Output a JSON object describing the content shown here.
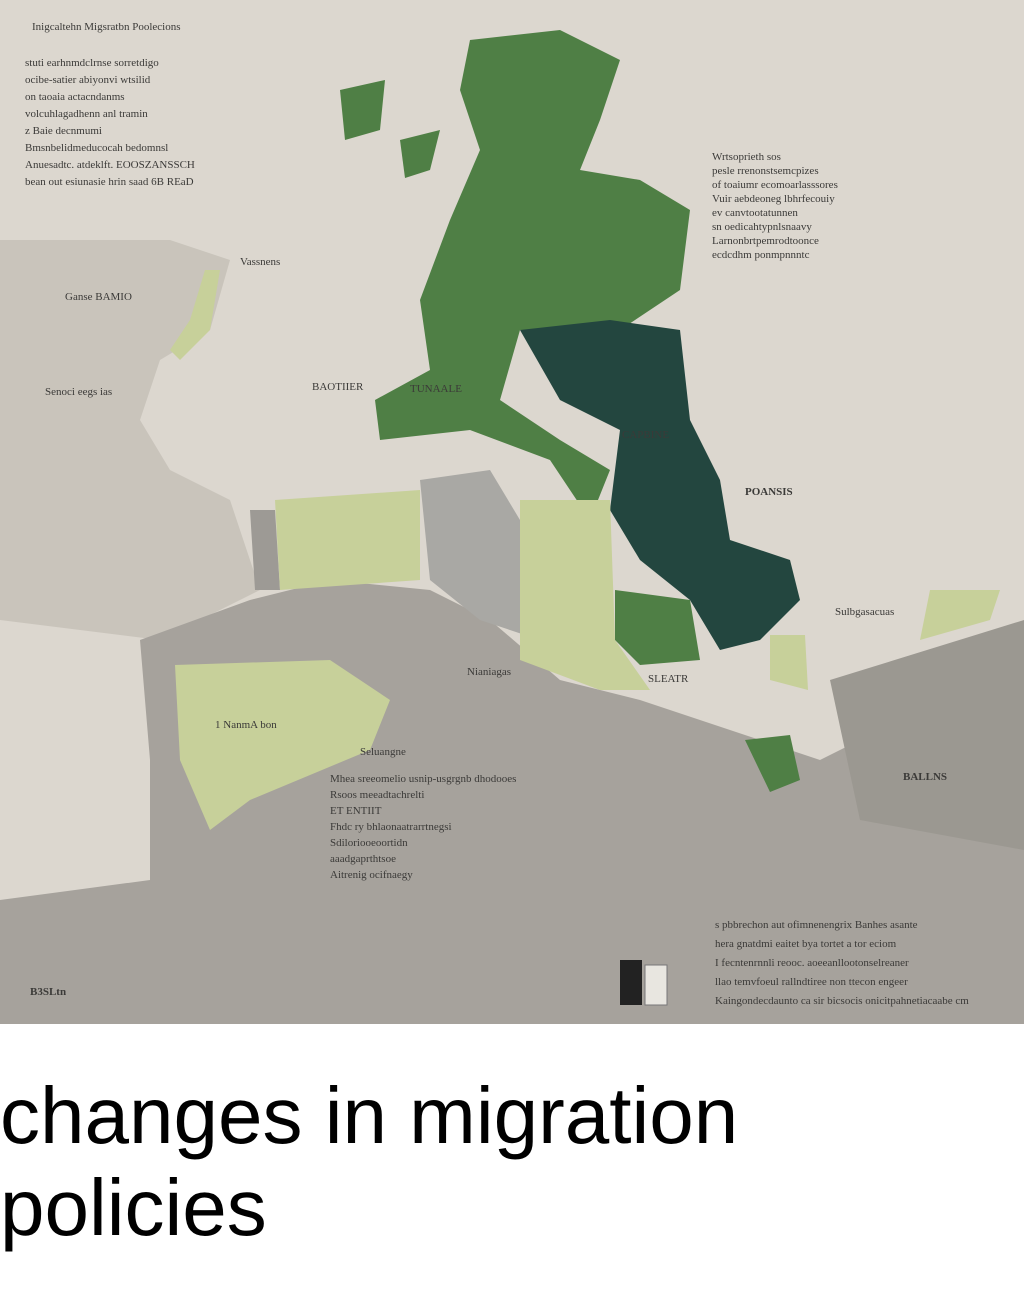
{
  "map": {
    "title": "Inigcaltehn Migsratbn Poolecions",
    "intro_lines": [
      "stuti earhnmdclrnse sorretdigo",
      "ocibe-satier abiyonvi wtsilid",
      "on taoaia actacndanms",
      "volcuhlagadhenn anl tramin",
      "z Baie decnmumi",
      "Bmsnbelidmeducocah bedomnsl",
      "Anuesadtc. atdeklft. EOOSZANSSCH",
      "bean out esiunasie hrin saad 6B REaD"
    ],
    "labels": [
      "Vassnens",
      "BAOTIIER",
      "TUNAALE",
      "CAPBINE",
      "POANSIS",
      "1 NanmA bon",
      "SLEATR",
      "BALLNS",
      "Ganse BAMIO",
      "Senoci eegs ias",
      "Sulbgasacuas",
      "Nianiagas",
      "Seluangne"
    ],
    "right_notes": [
      "Wrtsoprieth sos",
      "pesle rrenonstsemcpizes",
      "of toaiumr ecomoarlasssores",
      "Vuir aebdeoneg lbhrfecouiy",
      "ev canvtootatunnen",
      "sn oedicahtypnlsnaavy",
      "Larnonbrtpemrodtoonce",
      "ecdcdhm ponmpnnntc"
    ],
    "center_notes": [
      "Mhea sreeomelio usnip-usgrgnb dhodooes",
      "Rsoos meeadtachrelti",
      "ET ENTIIT",
      "Fhdc ry bhlaonaatrarrtnegsi",
      "Sdiloriooeoortidn",
      "aaadgaprthtsoe",
      "Aitrenig ocifnaegy"
    ],
    "bottom_notes": [
      "s pbbrechon aut ofimnenengrix Banhes asante",
      "hera gnatdmi eaitet bya tortet a tor eciom",
      "I fecntenrnnli reooc. aoeeanllootonselreaner",
      "llao temvfoeul rallndtiree non ttecon engeer",
      "Kaingondecdaunto ca sir bicsocis onicitpahnetiacaabe cm"
    ],
    "footer_logo": "B3SLtn",
    "caption": "changes in migration policies"
  }
}
